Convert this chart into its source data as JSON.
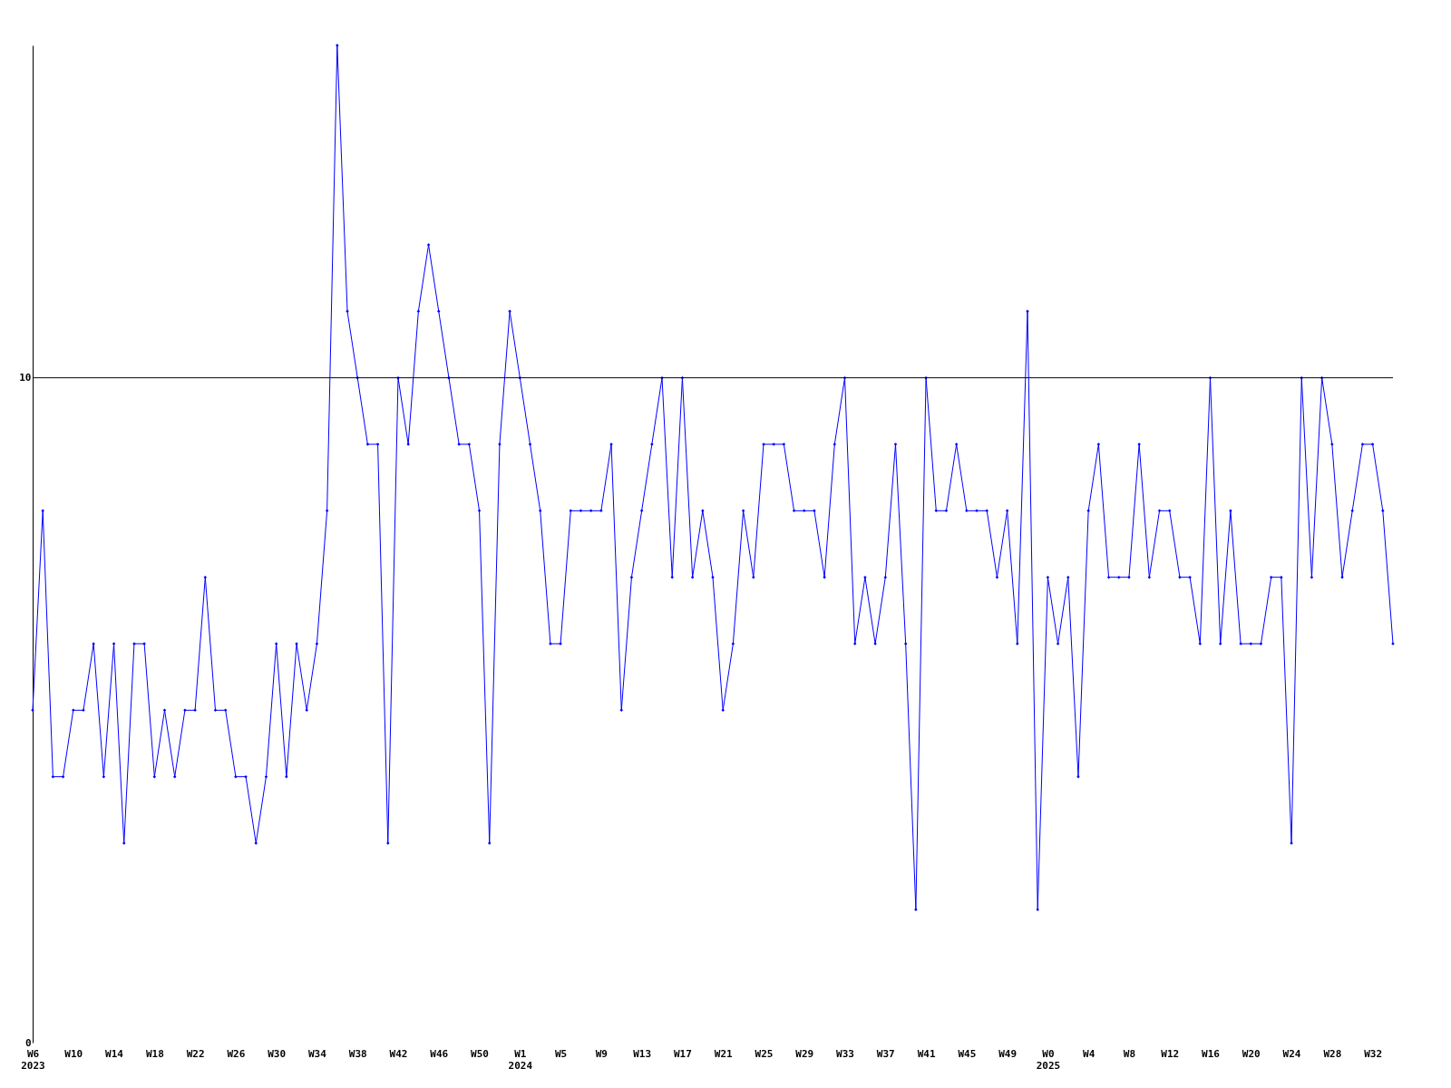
{
  "chart_data": {
    "type": "line",
    "categories": [
      "W6\n2023",
      null,
      null,
      null,
      "W10",
      null,
      null,
      null,
      "W14",
      null,
      null,
      null,
      "W18",
      null,
      null,
      null,
      "W22",
      null,
      null,
      null,
      "W26",
      null,
      null,
      null,
      "W30",
      null,
      null,
      null,
      "W34",
      null,
      null,
      null,
      "W38",
      null,
      null,
      null,
      "W42",
      null,
      null,
      null,
      "W46",
      null,
      null,
      null,
      "W50",
      null,
      null,
      null,
      "W1\n2024",
      null,
      null,
      null,
      "W5",
      null,
      null,
      null,
      "W9",
      null,
      null,
      null,
      "W13",
      null,
      null,
      null,
      "W17",
      null,
      null,
      null,
      "W21",
      null,
      null,
      null,
      "W25",
      null,
      null,
      null,
      "W29",
      null,
      null,
      null,
      "W33",
      null,
      null,
      null,
      "W37",
      null,
      null,
      null,
      "W41",
      null,
      null,
      null,
      "W45",
      null,
      null,
      null,
      "W49",
      null,
      null,
      null,
      "W0\n2025",
      null,
      null,
      null,
      "W4",
      null,
      null,
      null,
      "W8",
      null,
      null,
      null,
      "W12",
      null,
      null,
      null,
      "W16",
      null,
      null,
      null,
      "W20",
      null,
      null,
      null,
      "W24",
      null,
      null,
      null,
      "W28",
      null,
      null,
      null,
      "W32",
      null,
      null
    ],
    "series": [
      {
        "color": "#0000ff",
        "values": [
          5,
          8,
          4,
          4,
          5,
          5,
          6,
          4,
          6,
          3,
          6,
          6,
          4,
          5,
          4,
          5,
          5,
          7,
          5,
          5,
          4,
          4,
          3,
          4,
          6,
          4,
          6,
          5,
          6,
          8,
          15,
          11,
          10,
          9,
          9,
          3,
          10,
          9,
          11,
          12,
          11,
          10,
          9,
          9,
          8,
          3,
          9,
          11,
          10,
          9,
          8,
          6,
          6,
          8,
          8,
          8,
          8,
          9,
          5,
          7,
          8,
          9,
          10,
          7,
          10,
          7,
          8,
          7,
          5,
          6,
          8,
          7,
          9,
          9,
          9,
          8,
          8,
          8,
          7,
          9,
          10,
          6,
          7,
          6,
          7,
          9,
          6,
          2,
          10,
          8,
          8,
          9,
          8,
          8,
          8,
          7,
          8,
          6,
          11,
          2,
          7,
          6,
          7,
          4,
          8,
          9,
          7,
          7,
          7,
          9,
          7,
          8,
          8,
          7,
          7,
          6,
          10,
          6,
          8,
          6,
          6,
          6,
          7,
          7,
          3,
          10,
          7,
          10,
          9,
          7,
          8,
          9,
          9,
          8,
          6
        ]
      }
    ],
    "ylim": [
      0,
      15
    ],
    "yticks": [
      0,
      10
    ],
    "grid": false,
    "marker": "diamond",
    "line_style": "solid",
    "ref_lines": [
      {
        "axis": "y",
        "value": 10,
        "color": "#000000"
      }
    ]
  }
}
